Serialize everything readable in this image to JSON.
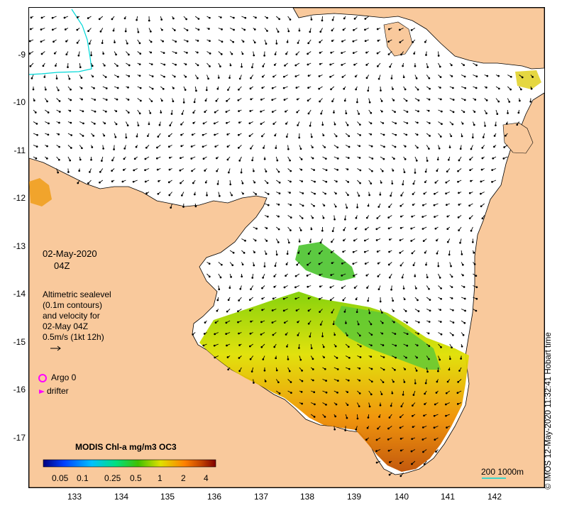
{
  "map": {
    "lat_ticks": [
      "-9",
      "-10",
      "-11",
      "-12",
      "-13",
      "-14",
      "-15",
      "-16",
      "-17"
    ],
    "lon_ticks": [
      "133",
      "134",
      "135",
      "136",
      "137",
      "138",
      "139",
      "140",
      "141",
      "142"
    ],
    "colors": {
      "land": "#f9c99c",
      "sea": "#ffffff",
      "coastline": "#000000",
      "boundary": "#00d8d8"
    }
  },
  "annotations": {
    "date": "02-May-2020",
    "time": "04Z",
    "description_lines": [
      "Altimetric sealevel",
      "(0.1m contours)",
      "and velocity for",
      "02-May 04Z",
      "0.5m/s (1kt 12h)"
    ]
  },
  "legend": {
    "argo": "Argo 0",
    "drifter": "drifter",
    "argo_color": "#ff00ff",
    "drifter_color": "#ff00ff"
  },
  "colorbar": {
    "title": "MODIS Chl-a mg/m3 OC3",
    "ticks": [
      "0.05",
      "0.1",
      "0.25",
      "0.5",
      "1",
      "2",
      "4"
    ],
    "colors": [
      "#00007f",
      "#0040ff",
      "#00c0ff",
      "#00e080",
      "#40c000",
      "#e0e000",
      "#ff8000",
      "#c04000",
      "#800000"
    ]
  },
  "scale": {
    "label": "200  1000m"
  },
  "credit": "© IMOS 12-May-2020 11:32:41 Hobart time"
}
